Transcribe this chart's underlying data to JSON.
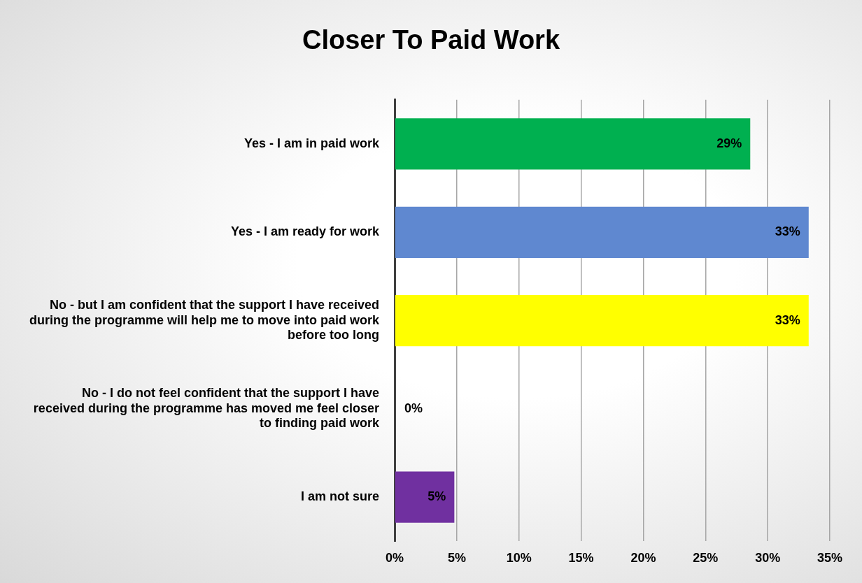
{
  "chart_data": {
    "type": "bar",
    "orientation": "horizontal",
    "title": "Closer To Paid Work",
    "categories": [
      "Yes - I am in paid work",
      "Yes - I am ready for work",
      "No - but I am confident that the support I have received during the programme will help me to move into paid work before too long",
      "No - I do not feel confident that the support I have received during the programme has moved me feel closer to finding paid work",
      "I am not sure"
    ],
    "values": [
      28.6,
      33.3,
      33.3,
      0,
      4.8
    ],
    "value_labels": [
      "29%",
      "33%",
      "33%",
      "0%",
      "5%"
    ],
    "colors": [
      "#00b050",
      "#5f88d0",
      "#ffff00",
      "#7030a0",
      "#7030a0"
    ],
    "xlim": [
      0,
      35
    ],
    "xticks": [
      {
        "value": 0,
        "label": "0%"
      },
      {
        "value": 5,
        "label": "5%"
      },
      {
        "value": 10,
        "label": "10%"
      },
      {
        "value": 15,
        "label": "15%"
      },
      {
        "value": 20,
        "label": "20%"
      },
      {
        "value": 25,
        "label": "25%"
      },
      {
        "value": 30,
        "label": "30%"
      },
      {
        "value": 35,
        "label": "35%"
      }
    ],
    "grid": "x"
  }
}
